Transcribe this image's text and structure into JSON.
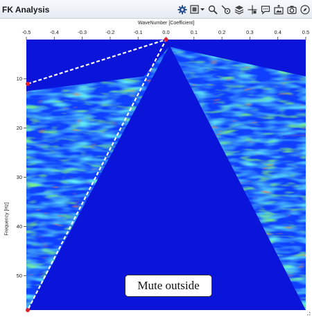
{
  "window": {
    "title": "FK Analysis"
  },
  "toolbar": {
    "items": [
      {
        "name": "settings-gear-icon",
        "color": "#2a4f8f"
      },
      {
        "name": "zoom-box-dropdown-icon",
        "color": "#333333"
      },
      {
        "name": "search-zoom-icon",
        "color": "#333333"
      },
      {
        "name": "pointer-probe-icon",
        "color": "#333333"
      },
      {
        "name": "layers-icon",
        "color": "#333333"
      },
      {
        "name": "crosshair-pan-icon",
        "color": "#333333"
      },
      {
        "name": "comment-annotation-icon",
        "color": "#333333"
      },
      {
        "name": "export-image-icon",
        "color": "#333333"
      },
      {
        "name": "camera-snapshot-icon",
        "color": "#333333"
      },
      {
        "name": "help-compass-icon",
        "color": "#333333"
      }
    ]
  },
  "plot": {
    "x_axis": {
      "title": "WaveNumber [Coefficient]",
      "range": [
        -0.5,
        0.5
      ],
      "ticks": [
        "-0.5",
        "-0.4",
        "-0.3",
        "-0.2",
        "-0.1",
        "0.0",
        "0.1",
        "0.2",
        "0.3",
        "0.4",
        "0.5"
      ]
    },
    "y_axis": {
      "title": "Frequency [Hz]",
      "range": [
        2,
        57
      ],
      "ticks": [
        "10",
        "20",
        "30",
        "40",
        "50"
      ]
    },
    "mute_polygon": {
      "label": "Mute outside",
      "points": [
        {
          "k": 0.0,
          "f": 2
        },
        {
          "k": -0.5,
          "f": 11
        },
        {
          "k": -0.5,
          "f": 57
        }
      ],
      "line_color": "#ffffff",
      "handle_color": "#e0202a"
    },
    "colors": {
      "background": "#0b14d9",
      "low": "#0f40ff",
      "mid": "#1fd2e8",
      "high_green": "#2ee82e",
      "high_yellow": "#f4f21c",
      "peak": "#ff2a10"
    }
  }
}
